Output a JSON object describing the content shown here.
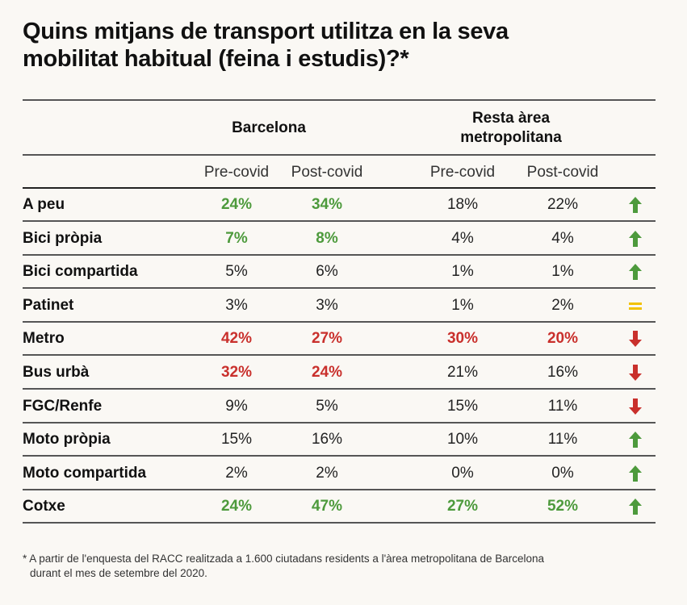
{
  "title": "Quins mitjans de transport utilitza en la seva mobilitat habitual (feina i estudis)?*",
  "groups": {
    "barcelona": "Barcelona",
    "resta_line1": "Resta àrea",
    "resta_line2": "metropolitana"
  },
  "subheaders": [
    "Pre-covid",
    "Post-covid",
    "Pre-covid",
    "Post-covid"
  ],
  "colors": {
    "green": "#4d9a3c",
    "red": "#c9302c",
    "yellow": "#f2c200"
  },
  "rows": [
    {
      "label": "A peu",
      "values": [
        "24%",
        "34%",
        "18%",
        "22%"
      ],
      "styles": [
        "green",
        "green",
        "",
        ""
      ],
      "trend": "up"
    },
    {
      "label": "Bici pròpia",
      "values": [
        "7%",
        "8%",
        "4%",
        "4%"
      ],
      "styles": [
        "green",
        "green",
        "",
        ""
      ],
      "trend": "up"
    },
    {
      "label": "Bici compartida",
      "values": [
        "5%",
        "6%",
        "1%",
        "1%"
      ],
      "styles": [
        "",
        "",
        "",
        ""
      ],
      "trend": "up"
    },
    {
      "label": "Patinet",
      "values": [
        "3%",
        "3%",
        "1%",
        "2%"
      ],
      "styles": [
        "",
        "",
        "",
        ""
      ],
      "trend": "equal"
    },
    {
      "label": "Metro",
      "values": [
        "42%",
        "27%",
        "30%",
        "20%"
      ],
      "styles": [
        "red",
        "red",
        "red",
        "red"
      ],
      "trend": "down"
    },
    {
      "label": "Bus urbà",
      "values": [
        "32%",
        "24%",
        "21%",
        "16%"
      ],
      "styles": [
        "red",
        "red",
        "",
        ""
      ],
      "trend": "down"
    },
    {
      "label": "FGC/Renfe",
      "values": [
        "9%",
        "5%",
        "15%",
        "11%"
      ],
      "styles": [
        "",
        "",
        "",
        ""
      ],
      "trend": "down"
    },
    {
      "label": "Moto pròpia",
      "values": [
        "15%",
        "16%",
        "10%",
        "11%"
      ],
      "styles": [
        "",
        "",
        "",
        ""
      ],
      "trend": "up"
    },
    {
      "label": "Moto compartida",
      "values": [
        "2%",
        "2%",
        "0%",
        "0%"
      ],
      "styles": [
        "",
        "",
        "",
        ""
      ],
      "trend": "up"
    },
    {
      "label": "Cotxe",
      "values": [
        "24%",
        "47%",
        "27%",
        "52%"
      ],
      "styles": [
        "green",
        "green",
        "green",
        "green"
      ],
      "trend": "up"
    }
  ],
  "footnote_line1": "* A partir de l'enquesta del RACC realitzada a 1.600 ciutadans residents a l'àrea metropolitana de Barcelona",
  "footnote_line2": "durant el mes de setembre del 2020."
}
